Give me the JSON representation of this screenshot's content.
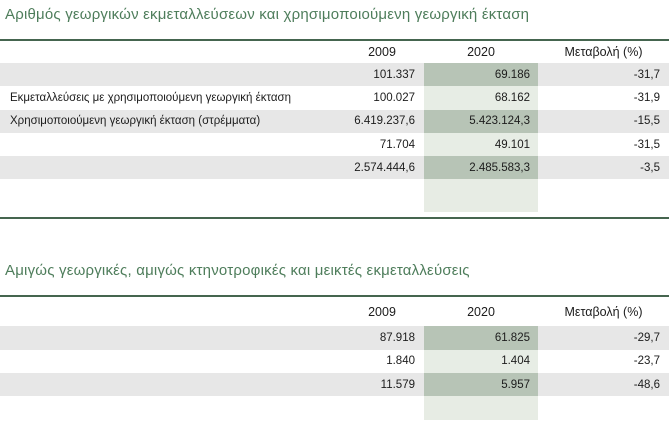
{
  "page": {
    "accent_green": "#4e7d5b",
    "rule_green": "#45654f",
    "stripe_gray": "#e7e7e7",
    "col2020_dark": "#b7c4b6",
    "col2020_light": "#e7ede5"
  },
  "tables": [
    {
      "title": "Αριθμός γεωργικών εκμεταλλεύσεων και χρησιμοποιούμενη γεωργική έκταση",
      "columns": {
        "year1": "2009",
        "year2": "2020",
        "change": "Μεταβολή (%)"
      },
      "rows": [
        {
          "label": "",
          "y2009": "101.337",
          "y2020": "69.186",
          "change": "-31,7"
        },
        {
          "label": "Εκμεταλλεύσεις με χρησιμοποιούμενη γεωργική έκταση",
          "y2009": "100.027",
          "y2020": "68.162",
          "change": "-31,9"
        },
        {
          "label": "Χρησιμοποιούμενη γεωργική έκταση (στρέμματα)",
          "y2009": "6.419.237,6",
          "y2020": "5.423.124,3",
          "change": "-15,5"
        },
        {
          "label": "",
          "y2009": "71.704",
          "y2020": "49.101",
          "change": "-31,5"
        },
        {
          "label": "",
          "y2009": "2.574.444,6",
          "y2020": "2.485.583,3",
          "change": "-3,5"
        }
      ]
    },
    {
      "title": "Αμιγώς γεωργικές, αμιγώς κτηνοτροφικές και μεικτές εκμεταλλεύσεις",
      "columns": {
        "year1": "2009",
        "year2": "2020",
        "change": "Μεταβολή (%)"
      },
      "rows": [
        {
          "label": "",
          "y2009": "87.918",
          "y2020": "61.825",
          "change": "-29,7"
        },
        {
          "label": "",
          "y2009": "1.840",
          "y2020": "1.404",
          "change": "-23,7"
        },
        {
          "label": "",
          "y2009": "11.579",
          "y2020": "5.957",
          "change": "-48,6"
        }
      ]
    }
  ]
}
